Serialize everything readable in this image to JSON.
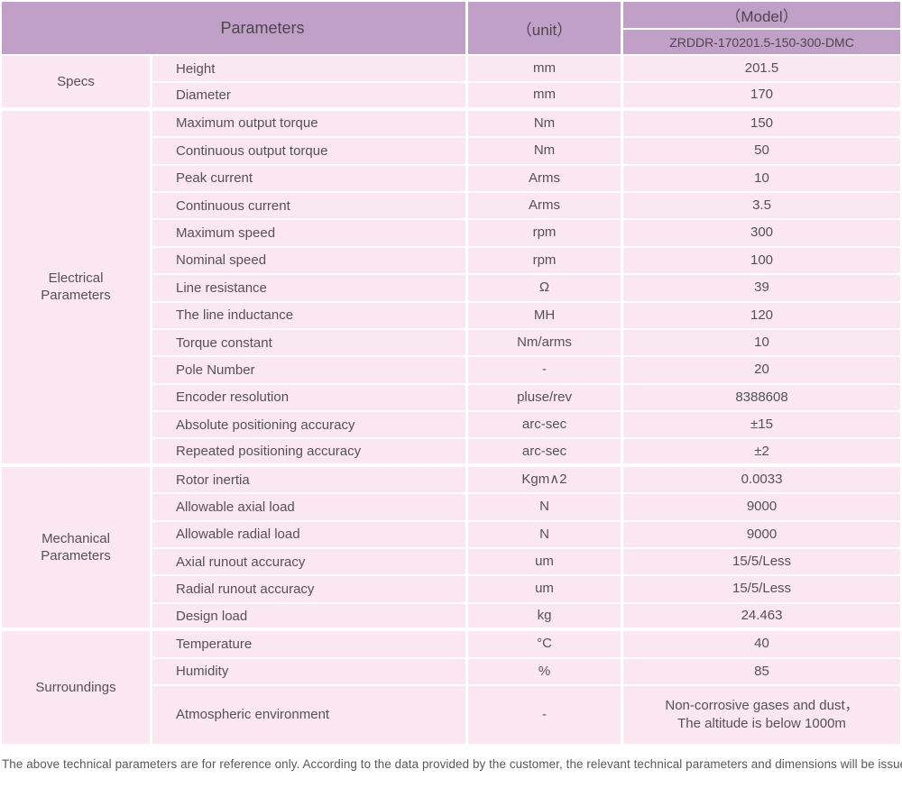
{
  "colors": {
    "header_purple": "#c1a0c7",
    "row_pink": "#fae7f0",
    "divider_white": "#ffffff",
    "text_gray": "#565155"
  },
  "table": {
    "header": {
      "parameters_label": "Parameters",
      "unit_label": "（unit）",
      "model_label": "（Model）",
      "model_value": "ZRDDR-170201.5-150-300-DMC"
    },
    "groups": [
      {
        "name": "Specs",
        "rows": [
          {
            "param": "Height",
            "unit": "mm",
            "value": "201.5"
          },
          {
            "param": "Diameter",
            "unit": "mm",
            "value": "170"
          }
        ]
      },
      {
        "name": "Electrical\nParameters",
        "rows": [
          {
            "param": "Maximum output torque",
            "unit": "Nm",
            "value": "150"
          },
          {
            "param": "Continuous output torque",
            "unit": "Nm",
            "value": "50"
          },
          {
            "param": "Peak current",
            "unit": "Arms",
            "value": "10"
          },
          {
            "param": "Continuous current",
            "unit": "Arms",
            "value": "3.5"
          },
          {
            "param": "Maximum speed",
            "unit": "rpm",
            "value": "300"
          },
          {
            "param": "Nominal speed",
            "unit": "rpm",
            "value": "100"
          },
          {
            "param": "Line resistance",
            "unit": "Ω",
            "value": "39"
          },
          {
            "param": "The line inductance",
            "unit": "MH",
            "value": "120"
          },
          {
            "param": "Torque constant",
            "unit": "Nm/arms",
            "value": "10"
          },
          {
            "param": "Pole Number",
            "unit": "-",
            "value": "20"
          },
          {
            "param": "Encoder resolution",
            "unit": "pluse/rev",
            "value": "8388608"
          },
          {
            "param": "Absolute positioning accuracy",
            "unit": "arc-sec",
            "value": "±15"
          },
          {
            "param": "Repeated positioning accuracy",
            "unit": "arc-sec",
            "value": "±2"
          }
        ]
      },
      {
        "name": "Mechanical\nParameters",
        "rows": [
          {
            "param": "Rotor inertia",
            "unit": "Kgm∧2",
            "value": "0.0033"
          },
          {
            "param": "Allowable axial load",
            "unit": "N",
            "value": "9000"
          },
          {
            "param": "Allowable radial load",
            "unit": "N",
            "value": "9000"
          },
          {
            "param": "Axial runout accuracy",
            "unit": "um",
            "value": "15/5/Less"
          },
          {
            "param": "Radial runout accuracy",
            "unit": "um",
            "value": "15/5/Less"
          },
          {
            "param": "Design load",
            "unit": "kg",
            "value": "24.463"
          }
        ]
      },
      {
        "name": "Surroundings",
        "rows": [
          {
            "param": "Temperature",
            "unit": "°C",
            "value": "40"
          },
          {
            "param": "Humidity",
            "unit": "%",
            "value": "85"
          },
          {
            "param": "Atmospheric environment",
            "unit": "-",
            "value": "Non-corrosive gases and dust，\nThe altitude is below 1000m",
            "tall": true
          }
        ]
      }
    ]
  },
  "footer": {
    "note": "The above technical parameters are for reference only. According to the data provided by the customer, the relevant technical parameters and dimensions will be issued."
  }
}
